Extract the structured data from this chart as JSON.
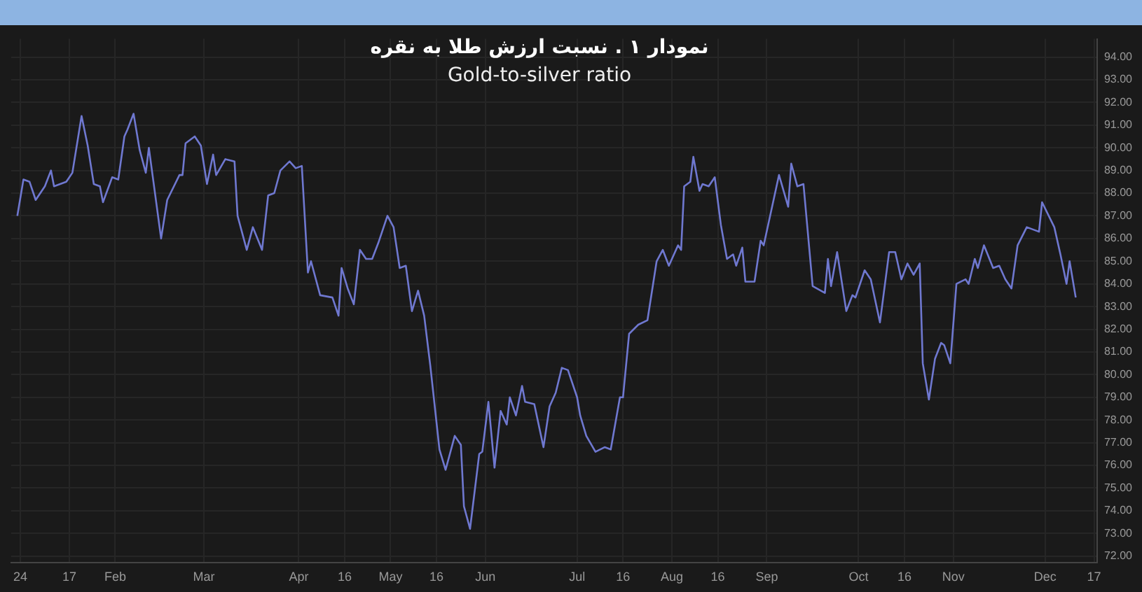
{
  "chart_data": {
    "type": "line",
    "title": "نمودار ۱ . نسبت ارزش طلا به نقره",
    "subtitle": "Gold-to-silver ratio",
    "x": [
      "2023-12-31",
      "2024-01-02",
      "2024-01-04",
      "2024-01-06",
      "2024-01-09",
      "2024-01-11",
      "2024-01-12",
      "2024-01-16",
      "2024-01-18",
      "2024-01-21",
      "2024-01-23",
      "2024-01-25",
      "2024-01-27",
      "2024-01-28",
      "2024-01-31",
      "2024-02-02",
      "2024-02-04",
      "2024-02-05",
      "2024-02-07",
      "2024-02-09",
      "2024-02-11",
      "2024-02-12",
      "2024-02-16",
      "2024-02-18",
      "2024-02-22",
      "2024-02-23",
      "2024-02-24",
      "2024-02-27",
      "2024-02-29",
      "2024-03-02",
      "2024-03-04",
      "2024-03-05",
      "2024-03-08",
      "2024-03-11",
      "2024-03-12",
      "2024-03-15",
      "2024-03-17",
      "2024-03-20",
      "2024-03-22",
      "2024-03-24",
      "2024-03-26",
      "2024-03-29",
      "2024-03-31",
      "2024-04-02",
      "2024-04-04",
      "2024-04-05",
      "2024-04-08",
      "2024-04-12",
      "2024-04-14",
      "2024-04-15",
      "2024-04-17",
      "2024-04-19",
      "2024-04-21",
      "2024-04-23",
      "2024-04-25",
      "2024-04-27",
      "2024-04-30",
      "2024-05-02",
      "2024-05-04",
      "2024-05-06",
      "2024-05-08",
      "2024-05-10",
      "2024-05-12",
      "2024-05-14",
      "2024-05-17",
      "2024-05-19",
      "2024-05-22",
      "2024-05-24",
      "2024-05-25",
      "2024-05-27",
      "2024-05-30",
      "2024-05-31",
      "2024-06-02",
      "2024-06-04",
      "2024-06-06",
      "2024-06-08",
      "2024-06-09",
      "2024-06-11",
      "2024-06-13",
      "2024-06-14",
      "2024-06-17",
      "2024-06-20",
      "2024-06-22",
      "2024-06-24",
      "2024-06-26",
      "2024-06-28",
      "2024-07-01",
      "2024-07-02",
      "2024-07-04",
      "2024-07-07",
      "2024-07-10",
      "2024-07-12",
      "2024-07-15",
      "2024-07-16",
      "2024-07-18",
      "2024-07-21",
      "2024-07-24",
      "2024-07-27",
      "2024-07-29",
      "2024-07-31",
      "2024-08-03",
      "2024-08-04",
      "2024-08-05",
      "2024-08-07",
      "2024-08-08",
      "2024-08-10",
      "2024-08-11",
      "2024-08-13",
      "2024-08-15",
      "2024-08-17",
      "2024-08-19",
      "2024-08-21",
      "2024-08-22",
      "2024-08-24",
      "2024-08-25",
      "2024-08-28",
      "2024-08-30",
      "2024-08-31",
      "2024-09-05",
      "2024-09-08",
      "2024-09-09",
      "2024-09-11",
      "2024-09-13",
      "2024-09-16",
      "2024-09-20",
      "2024-09-21",
      "2024-09-22",
      "2024-09-24",
      "2024-09-27",
      "2024-09-29",
      "2024-09-30",
      "2024-10-03",
      "2024-10-05",
      "2024-10-08",
      "2024-10-11",
      "2024-10-13",
      "2024-10-15",
      "2024-10-17",
      "2024-10-19",
      "2024-10-21",
      "2024-10-22",
      "2024-10-24",
      "2024-10-26",
      "2024-10-28",
      "2024-10-29",
      "2024-10-31",
      "2024-11-02",
      "2024-11-05",
      "2024-11-06",
      "2024-11-08",
      "2024-11-09",
      "2024-11-11",
      "2024-11-14",
      "2024-11-16",
      "2024-11-18",
      "2024-11-20",
      "2024-11-22",
      "2024-11-25",
      "2024-11-29",
      "2024-11-30",
      "2024-12-04",
      "2024-12-06",
      "2024-12-08",
      "2024-12-09",
      "2024-12-11"
    ],
    "series": [
      {
        "color": "#6f78d0",
        "values": [
          87.0,
          88.6,
          88.5,
          87.7,
          88.3,
          89.0,
          88.3,
          88.5,
          88.9,
          91.4,
          90.1,
          88.4,
          88.3,
          87.6,
          88.7,
          88.6,
          90.5,
          90.8,
          91.5,
          89.9,
          88.9,
          90.0,
          86.0,
          87.7,
          88.8,
          88.8,
          90.2,
          90.5,
          90.1,
          88.4,
          89.7,
          88.8,
          89.5,
          89.4,
          87.0,
          85.5,
          86.5,
          85.5,
          87.9,
          88.0,
          89.0,
          89.4,
          89.1,
          89.2,
          84.5,
          85.0,
          83.5,
          83.4,
          82.6,
          84.7,
          83.8,
          83.1,
          85.5,
          85.1,
          85.1,
          85.8,
          87.0,
          86.5,
          84.7,
          84.8,
          82.8,
          83.7,
          82.6,
          80.4,
          76.7,
          75.8,
          77.3,
          76.9,
          74.2,
          73.2,
          76.5,
          76.6,
          78.8,
          75.9,
          78.4,
          77.8,
          79.0,
          78.2,
          79.5,
          78.8,
          78.7,
          76.8,
          78.6,
          79.2,
          80.3,
          80.2,
          79.0,
          78.2,
          77.3,
          76.6,
          76.8,
          76.7,
          79.0,
          79.0,
          81.8,
          82.2,
          82.4,
          85.0,
          85.5,
          84.8,
          85.7,
          85.5,
          88.3,
          88.5,
          89.6,
          88.1,
          88.4,
          88.3,
          88.7,
          86.6,
          85.1,
          85.3,
          84.8,
          85.6,
          84.1,
          84.1,
          85.9,
          85.7,
          88.8,
          87.4,
          89.3,
          88.3,
          88.4,
          83.9,
          83.6,
          85.1,
          83.9,
          85.4,
          82.8,
          83.5,
          83.4,
          84.6,
          84.2,
          82.3,
          85.4,
          85.4,
          84.2,
          84.9,
          84.4,
          84.9,
          80.5,
          78.9,
          80.7,
          81.4,
          81.3,
          80.5,
          84.0,
          84.2,
          84.0,
          85.1,
          84.7,
          85.7,
          84.7,
          84.8,
          84.2,
          83.8,
          85.7,
          86.5,
          86.3,
          87.6,
          86.5,
          85.3,
          84.0,
          85.0,
          83.4
        ]
      }
    ],
    "xlim": [
      "2023-12-29",
      "2024-12-18"
    ],
    "xticks": [
      {
        "value": "2024-01-01",
        "label": "24"
      },
      {
        "value": "2024-01-17",
        "label": "17"
      },
      {
        "value": "2024-02-01",
        "label": "Feb"
      },
      {
        "value": "2024-03-01",
        "label": "Mar"
      },
      {
        "value": "2024-04-01",
        "label": "Apr"
      },
      {
        "value": "2024-04-16",
        "label": "16"
      },
      {
        "value": "2024-05-01",
        "label": "May"
      },
      {
        "value": "2024-05-16",
        "label": "16"
      },
      {
        "value": "2024-06-01",
        "label": "Jun"
      },
      {
        "value": "2024-07-01",
        "label": "Jul"
      },
      {
        "value": "2024-07-16",
        "label": "16"
      },
      {
        "value": "2024-08-01",
        "label": "Aug"
      },
      {
        "value": "2024-08-16",
        "label": "16"
      },
      {
        "value": "2024-09-01",
        "label": "Sep"
      },
      {
        "value": "2024-10-01",
        "label": "Oct"
      },
      {
        "value": "2024-10-16",
        "label": "16"
      },
      {
        "value": "2024-11-01",
        "label": "Nov"
      },
      {
        "value": "2024-12-01",
        "label": "Dec"
      },
      {
        "value": "2024-12-17",
        "label": "17"
      }
    ],
    "ylim": [
      71.7,
      94.8
    ],
    "yticks": [
      {
        "value": 72,
        "label": "72.00"
      },
      {
        "value": 73,
        "label": "73.00"
      },
      {
        "value": 74,
        "label": "74.00"
      },
      {
        "value": 75,
        "label": "75.00"
      },
      {
        "value": 76,
        "label": "76.00"
      },
      {
        "value": 77,
        "label": "77.00"
      },
      {
        "value": 78,
        "label": "78.00"
      },
      {
        "value": 79,
        "label": "79.00"
      },
      {
        "value": 80,
        "label": "80.00"
      },
      {
        "value": 81,
        "label": "81.00"
      },
      {
        "value": 82,
        "label": "82.00"
      },
      {
        "value": 83,
        "label": "83.00"
      },
      {
        "value": 84,
        "label": "84.00"
      },
      {
        "value": 85,
        "label": "85.00"
      },
      {
        "value": 86,
        "label": "86.00"
      },
      {
        "value": 87,
        "label": "87.00"
      },
      {
        "value": 88,
        "label": "88.00"
      },
      {
        "value": 89,
        "label": "89.00"
      },
      {
        "value": 90,
        "label": "90.00"
      },
      {
        "value": 91,
        "label": "91.00"
      },
      {
        "value": 92,
        "label": "92.00"
      },
      {
        "value": 93,
        "label": "93.00"
      },
      {
        "value": 94,
        "label": "94.00"
      }
    ],
    "grid": true,
    "legend": false,
    "marker": "none",
    "line_style": "solid"
  }
}
